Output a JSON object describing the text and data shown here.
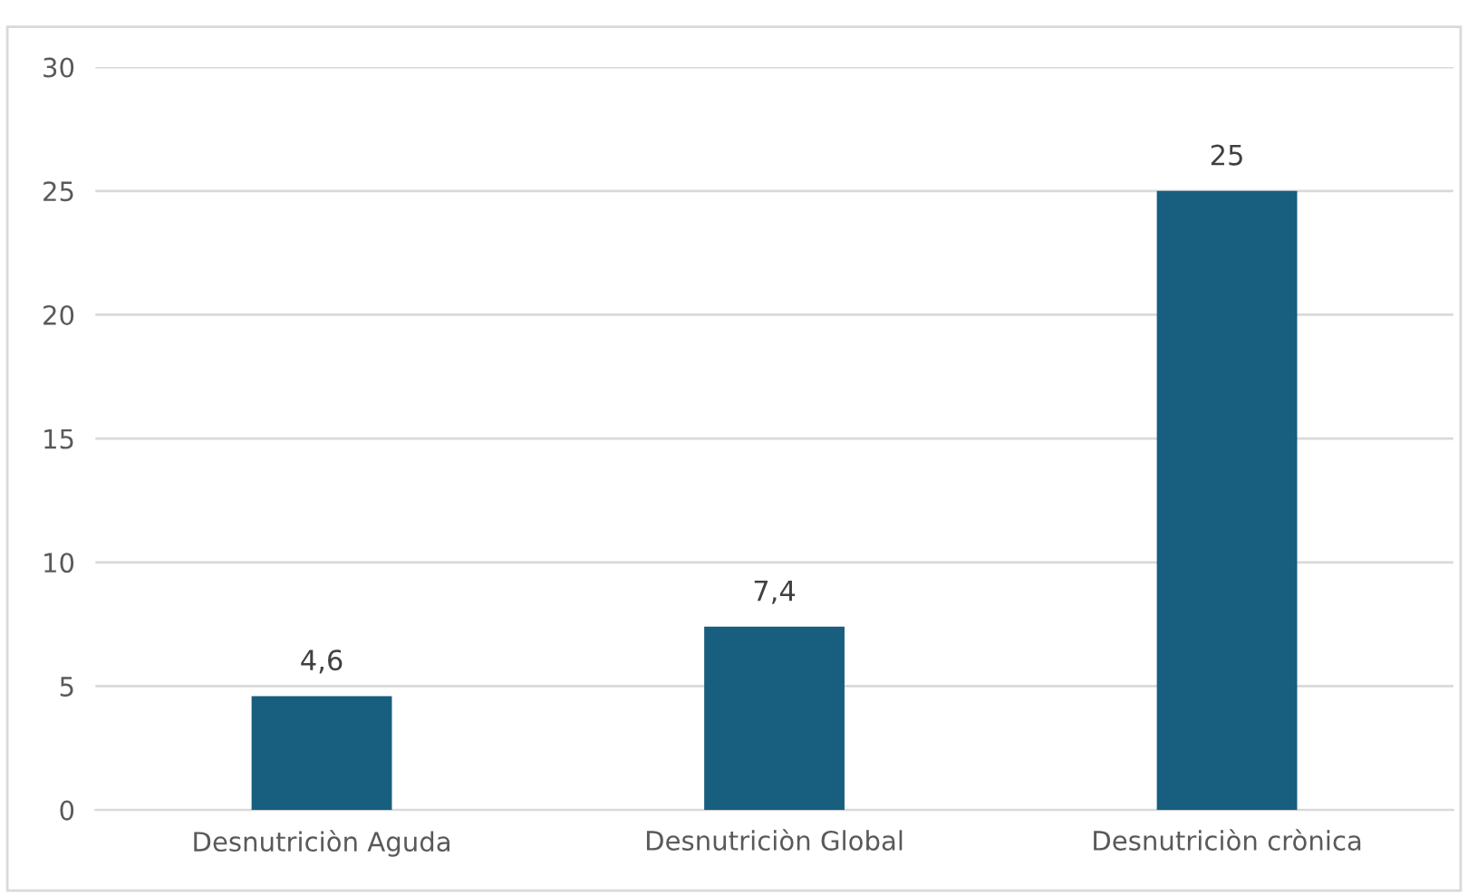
{
  "chart_data": {
    "type": "bar",
    "categories": [
      "Desnutriciòn Aguda",
      "Desnutriciòn Global",
      "Desnutriciòn crònica"
    ],
    "values": [
      4.6,
      7.4,
      25
    ],
    "value_labels": [
      "4,6",
      "7,4",
      "25"
    ],
    "color": "#175e7f",
    "ylim": [
      0,
      30
    ],
    "yticks": [
      0,
      5,
      10,
      15,
      20,
      25,
      30
    ],
    "grid": "y",
    "legend": false
  }
}
